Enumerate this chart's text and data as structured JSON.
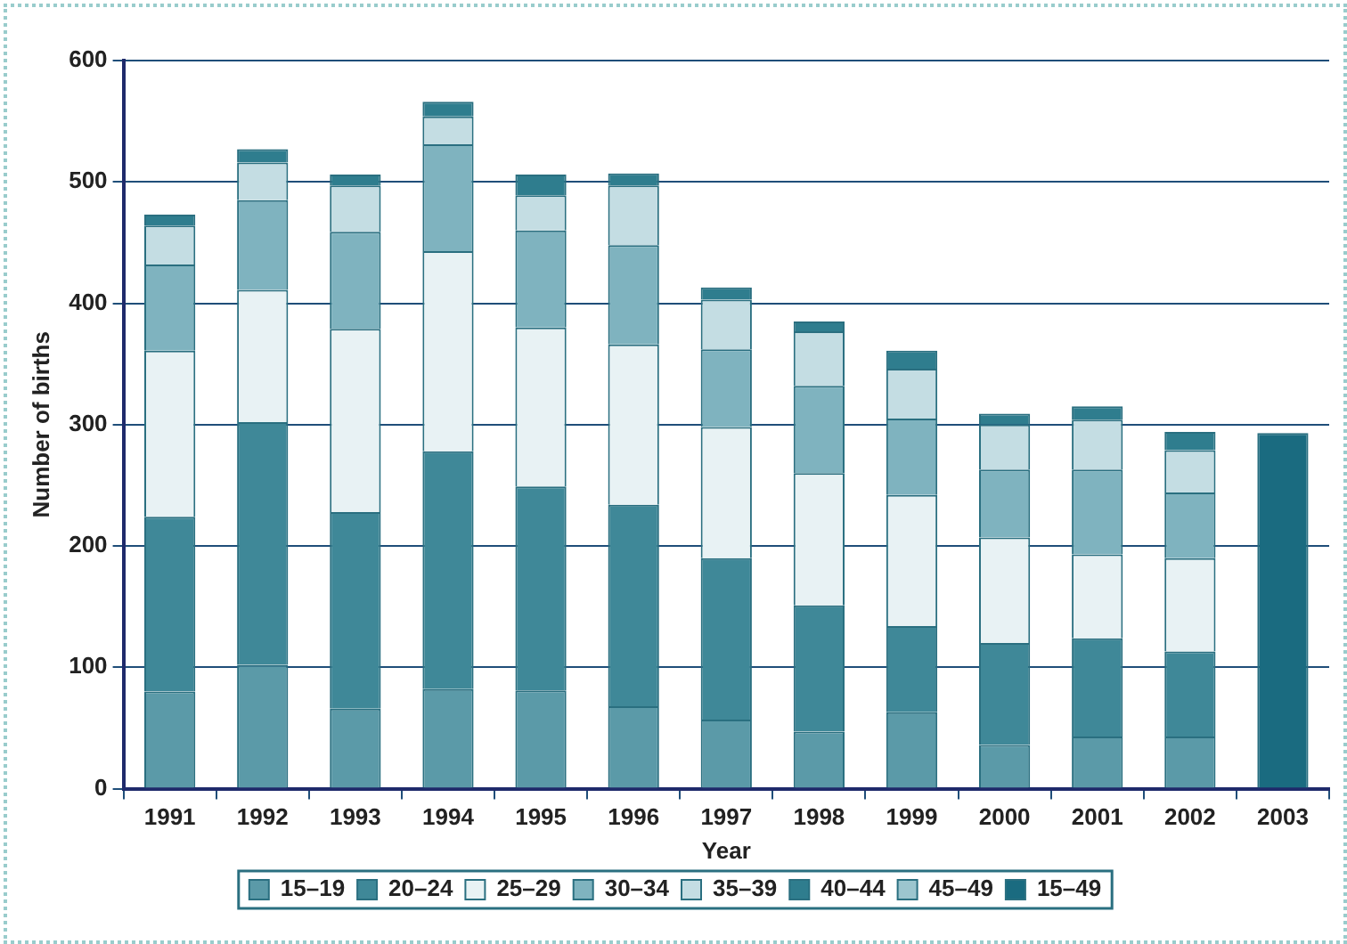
{
  "chart_data": {
    "type": "bar",
    "stacked": true,
    "xlabel": "Year",
    "ylabel": "Number of births",
    "categories": [
      "1991",
      "1992",
      "1993",
      "1994",
      "1995",
      "1996",
      "1997",
      "1998",
      "1999",
      "2000",
      "2001",
      "2002",
      "2003"
    ],
    "series": [
      {
        "name": "15–19",
        "color": "#5b9aa8",
        "values": [
          80,
          102,
          66,
          82,
          81,
          68,
          57,
          47,
          63,
          36,
          43,
          43,
          null
        ]
      },
      {
        "name": "20–24",
        "color": "#3f8898",
        "values": [
          144,
          200,
          162,
          196,
          168,
          166,
          133,
          104,
          71,
          84,
          81,
          70,
          null
        ]
      },
      {
        "name": "25–29",
        "color": "#e8f2f4",
        "values": [
          137,
          109,
          151,
          165,
          131,
          132,
          108,
          109,
          108,
          87,
          69,
          77,
          null
        ]
      },
      {
        "name": "30–34",
        "color": "#7fb3bf",
        "values": [
          71,
          74,
          80,
          88,
          80,
          82,
          64,
          72,
          63,
          56,
          70,
          54,
          null
        ]
      },
      {
        "name": "35–39",
        "color": "#c4dde3",
        "values": [
          32,
          31,
          38,
          23,
          29,
          49,
          41,
          45,
          41,
          37,
          41,
          35,
          null
        ]
      },
      {
        "name": "40–44",
        "color": "#2f7d8e",
        "values": [
          9,
          11,
          9,
          12,
          17,
          10,
          10,
          8,
          15,
          9,
          11,
          15,
          null
        ]
      },
      {
        "name": "45–49",
        "color": "#9cc5ce",
        "values": [
          0,
          0,
          0,
          0,
          0,
          0,
          0,
          0,
          0,
          0,
          0,
          0,
          null
        ]
      },
      {
        "name": "15–49",
        "color": "#1a6b80",
        "values": [
          null,
          null,
          null,
          null,
          null,
          null,
          null,
          null,
          null,
          null,
          null,
          null,
          293
        ]
      }
    ],
    "ylim": [
      0,
      600
    ],
    "yticks": [
      0,
      100,
      200,
      300,
      400,
      500,
      600
    ],
    "grid": "y",
    "legend": "bottom"
  }
}
